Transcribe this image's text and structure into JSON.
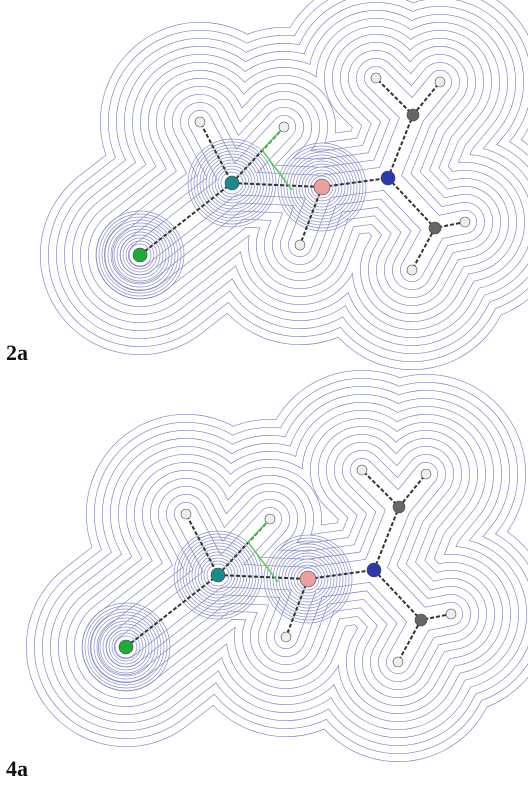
{
  "panels": [
    {
      "label": "2a"
    },
    {
      "label": "4a"
    }
  ]
}
